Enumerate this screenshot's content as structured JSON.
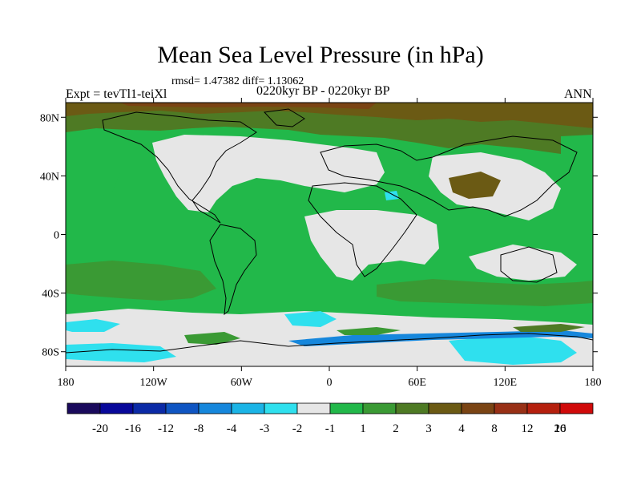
{
  "figure": {
    "title": "Mean Sea Level Pressure (in hPa)",
    "stats": "rmsd= 1.47382  diff= 1.13062",
    "left_label": "Expt = tevTl1-teiXl",
    "center_label": "0220kyr BP - 0220kyr BP",
    "right_label": "ANN"
  },
  "map": {
    "lon_range": [
      -180,
      180
    ],
    "lat_range": [
      -90,
      90
    ],
    "lat_ticks": [
      {
        "value": 80,
        "label": "80N"
      },
      {
        "value": 40,
        "label": "40N"
      },
      {
        "value": 0,
        "label": "0"
      },
      {
        "value": -40,
        "label": "40S"
      },
      {
        "value": -80,
        "label": "80S"
      }
    ],
    "lon_ticks": [
      {
        "value": -180,
        "label": "180"
      },
      {
        "value": -120,
        "label": "120W"
      },
      {
        "value": -60,
        "label": "60W"
      },
      {
        "value": 0,
        "label": "0"
      },
      {
        "value": 60,
        "label": "60E"
      },
      {
        "value": 120,
        "label": "120E"
      },
      {
        "value": 180,
        "label": "180"
      }
    ]
  },
  "colorbar": {
    "colors": [
      "#1a0a5c",
      "#08089a",
      "#0b2aa6",
      "#0f55c2",
      "#1687dc",
      "#1bb4e6",
      "#2fe0ee",
      "#e6e6e6",
      "#22b84a",
      "#3a9a34",
      "#4e7a24",
      "#6b5a14",
      "#7a4414",
      "#983016",
      "#b5200e",
      "#d00a0a"
    ],
    "labels": [
      "-20",
      "-16",
      "-12",
      "-8",
      "-4",
      "-3",
      "-2",
      "-1",
      "1",
      "2",
      "3",
      "4",
      "8",
      "12",
      "16",
      "20"
    ]
  },
  "palette": {
    "neutral": "#e6e6e6",
    "green": "#22b84a",
    "dark_green": "#3a9a34",
    "olive": "#4e7a24",
    "brown": "#6b5a14",
    "cyan": "#2fe0ee",
    "light_blue": "#1bb4e6",
    "blue": "#1687dc"
  }
}
